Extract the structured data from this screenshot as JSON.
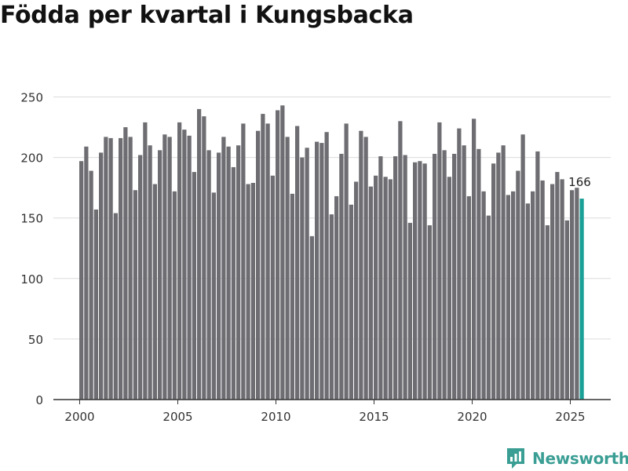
{
  "chart_data": {
    "type": "bar",
    "title": "Födda per kvartal i Kungsbacka",
    "xlabel": "",
    "ylabel": "",
    "ylim": [
      0,
      250
    ],
    "yticks": [
      0,
      50,
      100,
      150,
      200,
      250
    ],
    "xticks": [
      "2000",
      "2005",
      "2010",
      "2015",
      "2020",
      "2025"
    ],
    "grid": true,
    "start_year": 2000,
    "bar_color": "#6e6d72",
    "highlight_color": "#1aa097",
    "highlight_label": "166",
    "values": [
      197,
      209,
      189,
      157,
      204,
      217,
      216,
      154,
      216,
      225,
      217,
      173,
      202,
      229,
      210,
      178,
      206,
      219,
      217,
      172,
      229,
      223,
      218,
      188,
      240,
      234,
      206,
      171,
      204,
      217,
      209,
      192,
      210,
      228,
      178,
      179,
      222,
      236,
      228,
      185,
      239,
      243,
      217,
      170,
      226,
      200,
      208,
      135,
      213,
      212,
      221,
      153,
      168,
      203,
      228,
      161,
      180,
      222,
      217,
      176,
      185,
      201,
      184,
      182,
      201,
      230,
      202,
      146,
      196,
      197,
      195,
      144,
      203,
      229,
      206,
      184,
      203,
      224,
      210,
      168,
      232,
      207,
      172,
      152,
      195,
      204,
      210,
      169,
      172,
      189,
      219,
      162,
      172,
      205,
      181,
      144,
      178,
      188,
      182,
      148,
      173,
      175,
      166
    ]
  },
  "brand": {
    "name": "Newsworthy",
    "icon": "newsworthy-logo-icon"
  }
}
